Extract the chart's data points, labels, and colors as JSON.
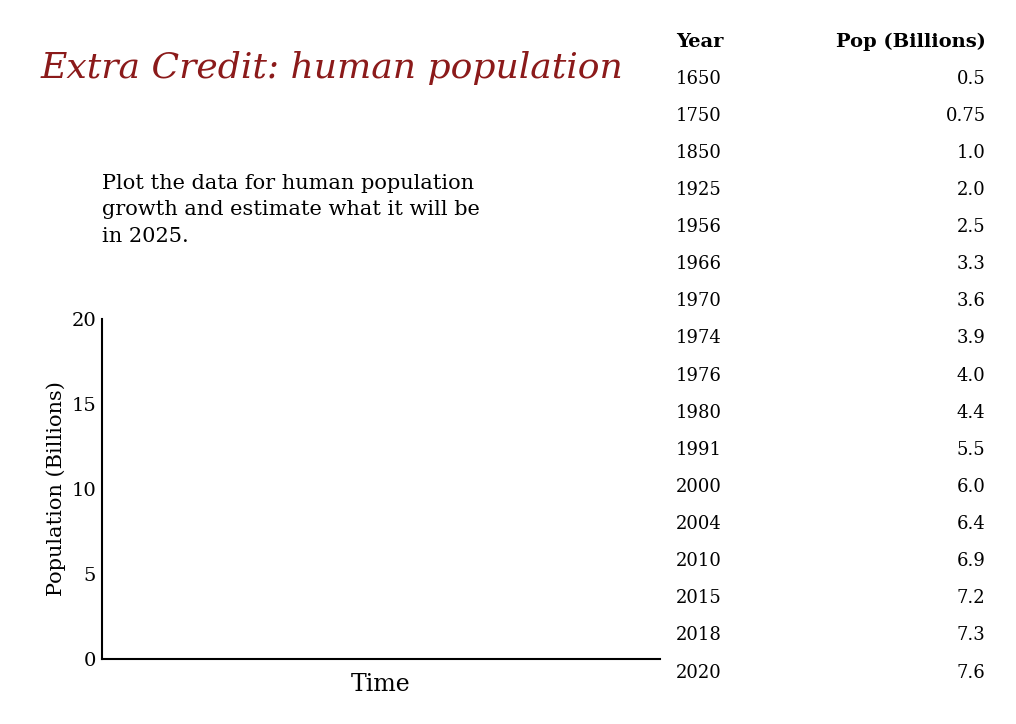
{
  "title": "Extra Credit: human population",
  "title_color": "#8B1A1A",
  "subtitle": "Plot the data for human population\ngrowth and estimate what it will be\nin 2025.",
  "subtitle_color": "#000000",
  "ylabel": "Population (Billions)",
  "xlabel": "Time",
  "ylim": [
    0,
    20
  ],
  "yticks": [
    0,
    5,
    10,
    15,
    20
  ],
  "background_color": "#ffffff",
  "table_years": [
    1650,
    1750,
    1850,
    1925,
    1956,
    1966,
    1970,
    1974,
    1976,
    1980,
    1991,
    2000,
    2004,
    2010,
    2015,
    2018,
    2020
  ],
  "table_pops": [
    "0.5",
    "0.75",
    "1.0",
    "2.0",
    "2.5",
    "3.3",
    "3.6",
    "3.9",
    "4.0",
    "4.4",
    "5.5",
    "6.0",
    "6.4",
    "6.9",
    "7.2",
    "7.3",
    "7.6"
  ],
  "table_header_year": "Year",
  "table_header_pop": "Pop (Billions)",
  "title_fontsize": 26,
  "subtitle_fontsize": 15,
  "axis_label_fontsize": 15,
  "tick_fontsize": 14,
  "table_header_fontsize": 14,
  "table_data_fontsize": 13
}
